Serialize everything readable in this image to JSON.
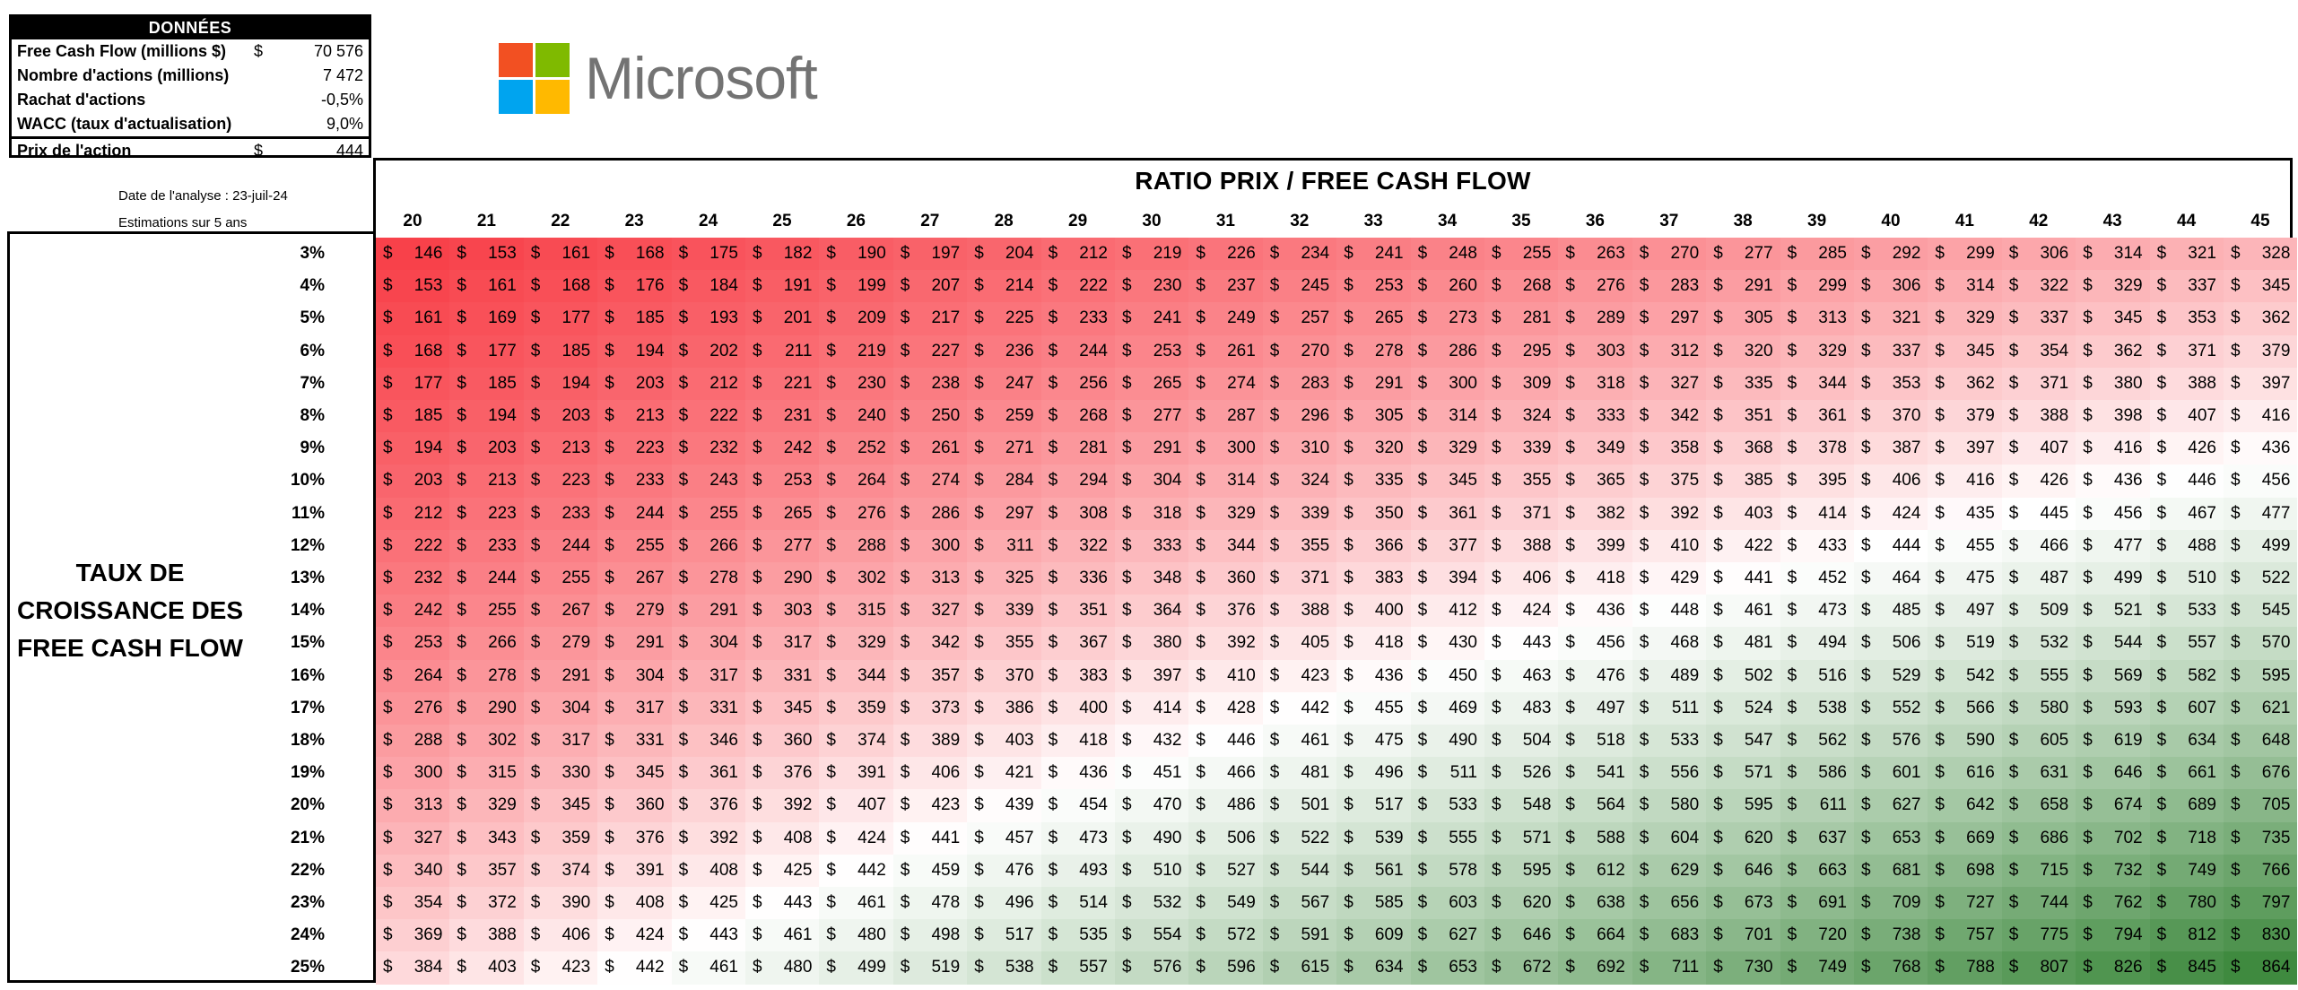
{
  "data_box": {
    "header": "DONNÉES",
    "rows": [
      {
        "label": "Free Cash Flow (millions $)",
        "currency": "$",
        "value": "70 576"
      },
      {
        "label": "Nombre d'actions (millions)",
        "currency": "",
        "value": "7 472"
      },
      {
        "label": "Rachat d'actions",
        "currency": "",
        "value": "-0,5%"
      },
      {
        "label": "WACC (taux d'actualisation)",
        "currency": "",
        "value": "9,0%"
      }
    ],
    "price": {
      "label": "Prix de l'action",
      "currency": "$",
      "value": "444"
    }
  },
  "meta": {
    "date_text": "Date de l'analyse :  23-juil-24",
    "estimation_text": "Estimations sur 5 ans"
  },
  "logo": {
    "text": "Microsoft",
    "colors": [
      "#f25022",
      "#7fba00",
      "#00a4ef",
      "#ffb900"
    ]
  },
  "table": {
    "title": "RATIO PRIX / FREE CASH FLOW",
    "row_title": "TAUX DE CROISSANCE DES FREE CASH FLOW",
    "currency": "$",
    "columns": [
      "20",
      "21",
      "22",
      "23",
      "24",
      "25",
      "26",
      "27",
      "28",
      "29",
      "30",
      "31",
      "32",
      "33",
      "34",
      "35",
      "36",
      "37",
      "38",
      "39",
      "40",
      "41",
      "42",
      "43",
      "44",
      "45"
    ],
    "rows": [
      {
        "label": "3%",
        "values": [
          146,
          153,
          161,
          168,
          175,
          182,
          190,
          197,
          204,
          212,
          219,
          226,
          234,
          241,
          248,
          255,
          263,
          270,
          277,
          285,
          292,
          299,
          306,
          314,
          321,
          328
        ]
      },
      {
        "label": "4%",
        "values": [
          153,
          161,
          168,
          176,
          184,
          191,
          199,
          207,
          214,
          222,
          230,
          237,
          245,
          253,
          260,
          268,
          276,
          283,
          291,
          299,
          306,
          314,
          322,
          329,
          337,
          345
        ]
      },
      {
        "label": "5%",
        "values": [
          161,
          169,
          177,
          185,
          193,
          201,
          209,
          217,
          225,
          233,
          241,
          249,
          257,
          265,
          273,
          281,
          289,
          297,
          305,
          313,
          321,
          329,
          337,
          345,
          353,
          362
        ]
      },
      {
        "label": "6%",
        "values": [
          168,
          177,
          185,
          194,
          202,
          211,
          219,
          227,
          236,
          244,
          253,
          261,
          270,
          278,
          286,
          295,
          303,
          312,
          320,
          329,
          337,
          345,
          354,
          362,
          371,
          379
        ]
      },
      {
        "label": "7%",
        "values": [
          177,
          185,
          194,
          203,
          212,
          221,
          230,
          238,
          247,
          256,
          265,
          274,
          283,
          291,
          300,
          309,
          318,
          327,
          335,
          344,
          353,
          362,
          371,
          380,
          388,
          397
        ]
      },
      {
        "label": "8%",
        "values": [
          185,
          194,
          203,
          213,
          222,
          231,
          240,
          250,
          259,
          268,
          277,
          287,
          296,
          305,
          314,
          324,
          333,
          342,
          351,
          361,
          370,
          379,
          388,
          398,
          407,
          416
        ]
      },
      {
        "label": "9%",
        "values": [
          194,
          203,
          213,
          223,
          232,
          242,
          252,
          261,
          271,
          281,
          291,
          300,
          310,
          320,
          329,
          339,
          349,
          358,
          368,
          378,
          387,
          397,
          407,
          416,
          426,
          436
        ]
      },
      {
        "label": "10%",
        "values": [
          203,
          213,
          223,
          233,
          243,
          253,
          264,
          274,
          284,
          294,
          304,
          314,
          324,
          335,
          345,
          355,
          365,
          375,
          385,
          395,
          406,
          416,
          426,
          436,
          446,
          456
        ]
      },
      {
        "label": "11%",
        "values": [
          212,
          223,
          233,
          244,
          255,
          265,
          276,
          286,
          297,
          308,
          318,
          329,
          339,
          350,
          361,
          371,
          382,
          392,
          403,
          414,
          424,
          435,
          445,
          456,
          467,
          477
        ]
      },
      {
        "label": "12%",
        "values": [
          222,
          233,
          244,
          255,
          266,
          277,
          288,
          300,
          311,
          322,
          333,
          344,
          355,
          366,
          377,
          388,
          399,
          410,
          422,
          433,
          444,
          455,
          466,
          477,
          488,
          499
        ]
      },
      {
        "label": "13%",
        "values": [
          232,
          244,
          255,
          267,
          278,
          290,
          302,
          313,
          325,
          336,
          348,
          360,
          371,
          383,
          394,
          406,
          418,
          429,
          441,
          452,
          464,
          475,
          487,
          499,
          510,
          522
        ]
      },
      {
        "label": "14%",
        "values": [
          242,
          255,
          267,
          279,
          291,
          303,
          315,
          327,
          339,
          351,
          364,
          376,
          388,
          400,
          412,
          424,
          436,
          448,
          461,
          473,
          485,
          497,
          509,
          521,
          533,
          545
        ]
      },
      {
        "label": "15%",
        "values": [
          253,
          266,
          279,
          291,
          304,
          317,
          329,
          342,
          355,
          367,
          380,
          392,
          405,
          418,
          430,
          443,
          456,
          468,
          481,
          494,
          506,
          519,
          532,
          544,
          557,
          570
        ]
      },
      {
        "label": "16%",
        "values": [
          264,
          278,
          291,
          304,
          317,
          331,
          344,
          357,
          370,
          383,
          397,
          410,
          423,
          436,
          450,
          463,
          476,
          489,
          502,
          516,
          529,
          542,
          555,
          569,
          582,
          595
        ]
      },
      {
        "label": "17%",
        "values": [
          276,
          290,
          304,
          317,
          331,
          345,
          359,
          373,
          386,
          400,
          414,
          428,
          442,
          455,
          469,
          483,
          497,
          511,
          524,
          538,
          552,
          566,
          580,
          593,
          607,
          621
        ]
      },
      {
        "label": "18%",
        "values": [
          288,
          302,
          317,
          331,
          346,
          360,
          374,
          389,
          403,
          418,
          432,
          446,
          461,
          475,
          490,
          504,
          518,
          533,
          547,
          562,
          576,
          590,
          605,
          619,
          634,
          648
        ]
      },
      {
        "label": "19%",
        "values": [
          300,
          315,
          330,
          345,
          361,
          376,
          391,
          406,
          421,
          436,
          451,
          466,
          481,
          496,
          511,
          526,
          541,
          556,
          571,
          586,
          601,
          616,
          631,
          646,
          661,
          676
        ]
      },
      {
        "label": "20%",
        "values": [
          313,
          329,
          345,
          360,
          376,
          392,
          407,
          423,
          439,
          454,
          470,
          486,
          501,
          517,
          533,
          548,
          564,
          580,
          595,
          611,
          627,
          642,
          658,
          674,
          689,
          705
        ]
      },
      {
        "label": "21%",
        "values": [
          327,
          343,
          359,
          376,
          392,
          408,
          424,
          441,
          457,
          473,
          490,
          506,
          522,
          539,
          555,
          571,
          588,
          604,
          620,
          637,
          653,
          669,
          686,
          702,
          718,
          735
        ]
      },
      {
        "label": "22%",
        "values": [
          340,
          357,
          374,
          391,
          408,
          425,
          442,
          459,
          476,
          493,
          510,
          527,
          544,
          561,
          578,
          595,
          612,
          629,
          646,
          663,
          681,
          698,
          715,
          732,
          749,
          766
        ]
      },
      {
        "label": "23%",
        "values": [
          354,
          372,
          390,
          408,
          425,
          443,
          461,
          478,
          496,
          514,
          532,
          549,
          567,
          585,
          603,
          620,
          638,
          656,
          673,
          691,
          709,
          727,
          744,
          762,
          780,
          797
        ]
      },
      {
        "label": "24%",
        "values": [
          369,
          388,
          406,
          424,
          443,
          461,
          480,
          498,
          517,
          535,
          554,
          572,
          591,
          609,
          627,
          646,
          664,
          683,
          701,
          720,
          738,
          757,
          775,
          794,
          812,
          830
        ]
      },
      {
        "label": "25%",
        "values": [
          384,
          403,
          423,
          442,
          461,
          480,
          499,
          519,
          538,
          557,
          576,
          596,
          615,
          634,
          653,
          672,
          692,
          711,
          730,
          749,
          768,
          788,
          807,
          826,
          845,
          864
        ]
      }
    ],
    "color_low": "#f8414a",
    "color_mid": "#ffffff",
    "color_high": "#3f8a3f",
    "midpoint_value": 444
  }
}
